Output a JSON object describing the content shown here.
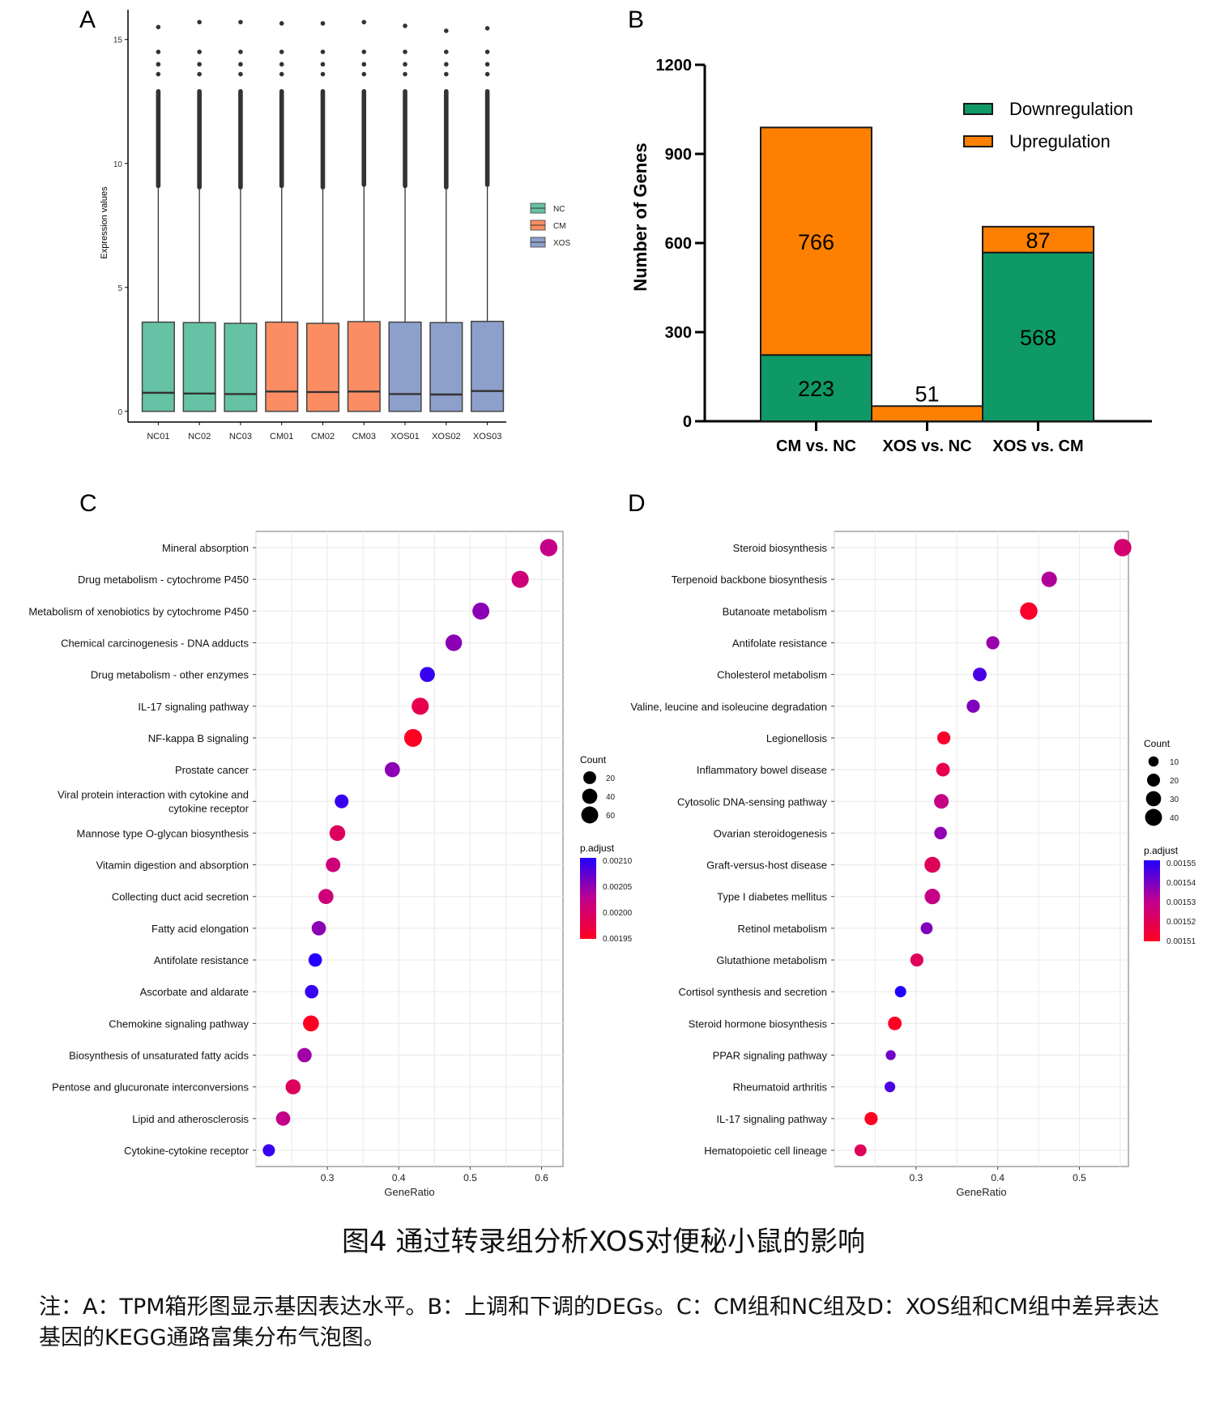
{
  "figure": {
    "title": "图4 通过转录组分析XOS对便秘小鼠的影响",
    "note": "注：A：TPM箱形图显示基因表达水平。B：上调和下调的DEGs。C：CM组和NC组及D：XOS组和CM组中差异表达基因的KEGG通路富集分布气泡图。"
  },
  "panels": {
    "a": "A",
    "b": "B",
    "c": "C",
    "d": "D"
  },
  "chart_data": [
    {
      "id": "A",
      "type": "box",
      "title": "",
      "xlabel": "",
      "ylabel": "Expression values",
      "ylim": [
        -0.3,
        16.2
      ],
      "yticks": [
        0,
        5,
        10,
        15
      ],
      "grid": false,
      "legend": {
        "position": "right",
        "entries": [
          {
            "name": "NC",
            "color": "#66c2a5"
          },
          {
            "name": "CM",
            "color": "#fc8d62"
          },
          {
            "name": "XOS",
            "color": "#8da0cb"
          }
        ]
      },
      "categories": [
        "NC01",
        "NC02",
        "NC03",
        "CM01",
        "CM02",
        "CM03",
        "XOS01",
        "XOS02",
        "XOS03"
      ],
      "groups": [
        "NC",
        "NC",
        "NC",
        "CM",
        "CM",
        "CM",
        "XOS",
        "XOS",
        "XOS"
      ],
      "boxes": [
        {
          "q1": 0,
          "median": 0.75,
          "q3": 3.6,
          "whisker_high": 9.0,
          "outlier_max": 15.5
        },
        {
          "q1": 0,
          "median": 0.72,
          "q3": 3.58,
          "whisker_high": 8.95,
          "outlier_max": 15.7
        },
        {
          "q1": 0,
          "median": 0.7,
          "q3": 3.55,
          "whisker_high": 8.95,
          "outlier_max": 15.7
        },
        {
          "q1": 0,
          "median": 0.8,
          "q3": 3.6,
          "whisker_high": 9.0,
          "outlier_max": 15.65
        },
        {
          "q1": 0,
          "median": 0.78,
          "q3": 3.55,
          "whisker_high": 8.95,
          "outlier_max": 15.65
        },
        {
          "q1": 0,
          "median": 0.8,
          "q3": 3.62,
          "whisker_high": 9.05,
          "outlier_max": 15.7
        },
        {
          "q1": 0,
          "median": 0.7,
          "q3": 3.6,
          "whisker_high": 9.0,
          "outlier_max": 15.55
        },
        {
          "q1": 0,
          "median": 0.68,
          "q3": 3.58,
          "whisker_high": 8.95,
          "outlier_max": 15.35
        },
        {
          "q1": 0,
          "median": 0.82,
          "q3": 3.63,
          "whisker_high": 9.05,
          "outlier_max": 15.45
        }
      ]
    },
    {
      "id": "B",
      "type": "bar",
      "stacked": true,
      "title": "",
      "xlabel": "",
      "ylabel": "Number of Genes",
      "ylim": [
        0,
        1200
      ],
      "yticks": [
        0,
        300,
        600,
        900,
        1200
      ],
      "grid": false,
      "legend": {
        "position": "top-right"
      },
      "categories": [
        "CM vs. NC",
        "XOS vs. NC",
        "XOS vs. CM"
      ],
      "series": [
        {
          "name": "Downregulation",
          "color": "#0e9966",
          "values": [
            223,
            0,
            568
          ]
        },
        {
          "name": "Upregulation",
          "color": "#ff8000",
          "values": [
            766,
            51,
            87
          ]
        }
      ]
    },
    {
      "id": "C",
      "type": "scatter",
      "subtype": "bubble",
      "title": "",
      "xlabel": "GeneRatio",
      "ylabel": "",
      "xlim": [
        0.2,
        0.63
      ],
      "xticks": [
        0.3,
        0.4,
        0.5,
        0.6
      ],
      "grid": true,
      "size_legend": {
        "title": "Count",
        "values": [
          20,
          40,
          60
        ]
      },
      "color_legend": {
        "title": "p.adjust",
        "min": 0.00195,
        "max": 0.0021,
        "ticks": [
          "0.00210",
          "0.00205",
          "0.00200",
          "0.00195"
        ],
        "low_color": "#ff0000",
        "high_color": "#0000ff"
      },
      "points": [
        {
          "term": "Mineral absorption",
          "x": 0.61,
          "count": 55,
          "padj": 0.00202
        },
        {
          "term": "Drug metabolism - cytochrome P450",
          "x": 0.57,
          "count": 52,
          "padj": 0.00201
        },
        {
          "term": "Metabolism of xenobiotics by cytochrome P450",
          "x": 0.515,
          "count": 50,
          "padj": 0.00205
        },
        {
          "term": "Chemical carcinogenesis - DNA adducts",
          "x": 0.477,
          "count": 46,
          "padj": 0.00205
        },
        {
          "term": "Drug metabolism - other enzymes",
          "x": 0.44,
          "count": 32,
          "padj": 0.00209
        },
        {
          "term": "IL-17 signaling pathway",
          "x": 0.43,
          "count": 52,
          "padj": 0.00198
        },
        {
          "term": "NF-kappa B signaling",
          "x": 0.42,
          "count": 60,
          "padj": 0.00195
        },
        {
          "term": "Prostate cancer",
          "x": 0.391,
          "count": 33,
          "padj": 0.00205
        },
        {
          "term": "Viral protein interaction with cytokine and cytokine receptor",
          "x": 0.32,
          "count": 22,
          "padj": 0.00209
        },
        {
          "term": "Mannose type O-glycan biosynthesis",
          "x": 0.314,
          "count": 38,
          "padj": 0.00199
        },
        {
          "term": "Vitamin digestion and absorption",
          "x": 0.308,
          "count": 28,
          "padj": 0.00201
        },
        {
          "term": "Collecting duct acid secretion",
          "x": 0.298,
          "count": 32,
          "padj": 0.00201
        },
        {
          "term": "Fatty acid elongation",
          "x": 0.288,
          "count": 26,
          "padj": 0.00205
        },
        {
          "term": "Antifolate resistance",
          "x": 0.283,
          "count": 20,
          "padj": 0.0021
        },
        {
          "term": "Ascorbate and aldarate",
          "x": 0.278,
          "count": 20,
          "padj": 0.00209
        },
        {
          "term": "Chemokine signaling pathway",
          "x": 0.277,
          "count": 40,
          "padj": 0.00195
        },
        {
          "term": "Biosynthesis of unsaturated fatty acids",
          "x": 0.268,
          "count": 26,
          "padj": 0.00204
        },
        {
          "term": "Pentose and glucuronate interconversions",
          "x": 0.252,
          "count": 32,
          "padj": 0.00199
        },
        {
          "term": "Lipid and atherosclerosis",
          "x": 0.238,
          "count": 26,
          "padj": 0.00202
        },
        {
          "term": "Cytokine-cytokine receptor",
          "x": 0.218,
          "count": 12,
          "padj": 0.00209
        }
      ]
    },
    {
      "id": "D",
      "type": "scatter",
      "subtype": "bubble",
      "title": "",
      "xlabel": "GeneRatio",
      "ylabel": "",
      "xlim": [
        0.2,
        0.56
      ],
      "xticks": [
        0.3,
        0.4,
        0.5
      ],
      "grid": true,
      "size_legend": {
        "title": "Count",
        "values": [
          10,
          20,
          30,
          40
        ]
      },
      "color_legend": {
        "title": "p.adjust",
        "min": 0.00151,
        "max": 0.00155,
        "ticks": [
          "0.00155",
          "0.00154",
          "0.00153",
          "0.00152",
          "0.00151"
        ],
        "low_color": "#ff0000",
        "high_color": "#0000ff"
      },
      "points": [
        {
          "term": "Steroid biosynthesis",
          "x": 0.553,
          "count": 38,
          "padj": 0.001524
        },
        {
          "term": "Terpenoid backbone biosynthesis",
          "x": 0.463,
          "count": 28,
          "padj": 0.001532
        },
        {
          "term": "Butanoate metabolism",
          "x": 0.438,
          "count": 38,
          "padj": 0.001512
        },
        {
          "term": "Antifolate resistance",
          "x": 0.394,
          "count": 18,
          "padj": 0.001535
        },
        {
          "term": "Cholesterol metabolism",
          "x": 0.378,
          "count": 20,
          "padj": 0.001545
        },
        {
          "term": "Valine, leucine and isoleucine degradation",
          "x": 0.37,
          "count": 18,
          "padj": 0.001538
        },
        {
          "term": "Legionellosis",
          "x": 0.334,
          "count": 18,
          "padj": 0.001512
        },
        {
          "term": "Inflammatory bowel disease",
          "x": 0.333,
          "count": 20,
          "padj": 0.001518
        },
        {
          "term": "Cytosolic DNA-sensing pathway",
          "x": 0.331,
          "count": 24,
          "padj": 0.001528
        },
        {
          "term": "Ovarian steroidogenesis",
          "x": 0.33,
          "count": 16,
          "padj": 0.001536
        },
        {
          "term": "Graft-versus-host disease",
          "x": 0.32,
          "count": 30,
          "padj": 0.00152
        },
        {
          "term": "Type I diabetes mellitus",
          "x": 0.32,
          "count": 28,
          "padj": 0.001528
        },
        {
          "term": "Retinol metabolism",
          "x": 0.313,
          "count": 14,
          "padj": 0.001538
        },
        {
          "term": "Glutathione metabolism",
          "x": 0.301,
          "count": 18,
          "padj": 0.00152
        },
        {
          "term": "Cortisol synthesis and secretion",
          "x": 0.281,
          "count": 12,
          "padj": 0.00155
        },
        {
          "term": "Steroid hormone biosynthesis",
          "x": 0.274,
          "count": 20,
          "padj": 0.00151
        },
        {
          "term": "PPAR signaling pathway",
          "x": 0.269,
          "count": 8,
          "padj": 0.00154
        },
        {
          "term": "Rheumatoid arthritis",
          "x": 0.268,
          "count": 10,
          "padj": 0.001545
        },
        {
          "term": "IL-17 signaling pathway",
          "x": 0.245,
          "count": 18,
          "padj": 0.00151
        },
        {
          "term": "Hematopoietic cell lineage",
          "x": 0.232,
          "count": 14,
          "padj": 0.00152
        }
      ]
    }
  ]
}
